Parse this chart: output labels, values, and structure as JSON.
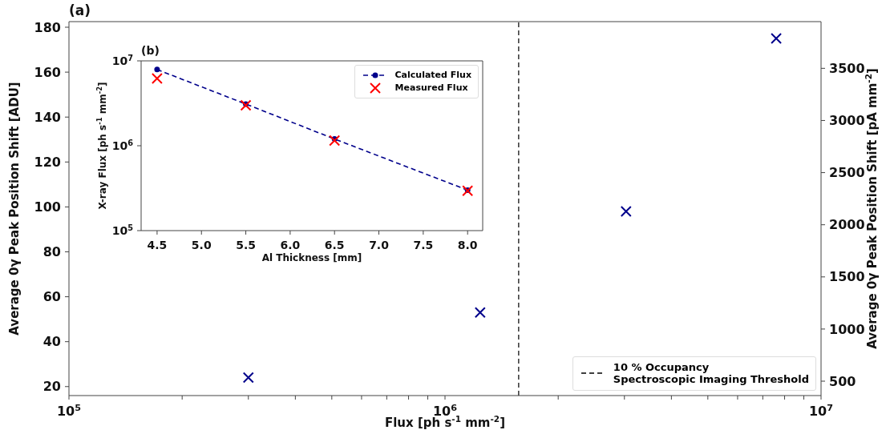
{
  "chart_data": [
    {
      "type": "scatter",
      "title": "(a)",
      "xlabel": "Flux [ph s$^{-1}$ mm$^{-2}$]",
      "ylabel": "Average 0γ Peak Position Shift [ADU]",
      "y2label": "Average 0γ Peak Position Shift [pA mm$^{-2}$]",
      "log": "x",
      "xlim": [
        100000,
        10000000
      ],
      "xticks": [
        {
          "value": 100000,
          "label": "10$^{5}$"
        },
        {
          "value": 200000,
          "label": null
        },
        {
          "value": 300000,
          "label": null
        },
        {
          "value": 400000,
          "label": null
        },
        {
          "value": 500000,
          "label": null
        },
        {
          "value": 600000,
          "label": null
        },
        {
          "value": 700000,
          "label": null
        },
        {
          "value": 800000,
          "label": null
        },
        {
          "value": 900000,
          "label": null
        },
        {
          "value": 1000000,
          "label": "10$^{6}$"
        },
        {
          "value": 2000000,
          "label": null
        },
        {
          "value": 3000000,
          "label": null
        },
        {
          "value": 4000000,
          "label": null
        },
        {
          "value": 5000000,
          "label": null
        },
        {
          "value": 6000000,
          "label": null
        },
        {
          "value": 7000000,
          "label": null
        },
        {
          "value": 8000000,
          "label": null
        },
        {
          "value": 9000000,
          "label": null
        },
        {
          "value": 10000000,
          "label": "10$^{7}$"
        }
      ],
      "ylim": [
        16,
        182.5
      ],
      "yticks": [
        20,
        40,
        60,
        80,
        100,
        120,
        140,
        160,
        180
      ],
      "y2lim": [
        362,
        3948
      ],
      "y2ticks": [
        500,
        1000,
        1500,
        2000,
        2500,
        3000,
        3500
      ],
      "series": [
        {
          "color": "#00008b",
          "marker": "cross",
          "x": [
            300000,
            1240000,
            3030000,
            7600000
          ],
          "values": [
            24,
            53,
            98,
            175
          ]
        }
      ],
      "ref_lines": [
        {
          "axis": "x",
          "value": 1570000,
          "label": "10 % Occupancy\nSpectroscopic Imaging Threshold",
          "color": "#000000",
          "line_style": "dashed"
        }
      ],
      "legend": "bottom right"
    },
    {
      "type": "line",
      "title": "(b)",
      "xlabel": "Al Thickness [mm]",
      "ylabel": "X-ray Flux [ph s$^{-1}$ mm$^{-2}$]",
      "log": "y",
      "xlim": [
        4.32,
        8.17
      ],
      "xticks": [
        4.5,
        {
          "value": 5,
          "label": "5.0"
        },
        5.5,
        {
          "value": 6,
          "label": "6.0"
        },
        6.5,
        {
          "value": 7,
          "label": "7.0"
        },
        7.5,
        {
          "value": 8,
          "label": "8.0"
        }
      ],
      "ylim": [
        100000,
        10000000
      ],
      "yticks": [
        {
          "value": 100000,
          "label": "10$^{5}$"
        },
        {
          "value": 1000000,
          "label": "10$^{6}$"
        },
        {
          "value": 10000000,
          "label": "10$^{7}$"
        }
      ],
      "x": [
        4.5,
        5.5,
        6.5,
        8
      ],
      "series": [
        {
          "name": "Calculated Flux",
          "color": "#00008b",
          "marker": "circle",
          "line_style": "dashed",
          "values": [
            7900000,
            3100000,
            1200000,
            300000
          ]
        },
        {
          "name": "Measured Flux",
          "type": "scatter",
          "color": "#ff0000",
          "marker": "cross",
          "values": [
            6200000,
            3000000,
            1150000,
            295000
          ]
        }
      ],
      "legend": "top right"
    }
  ]
}
